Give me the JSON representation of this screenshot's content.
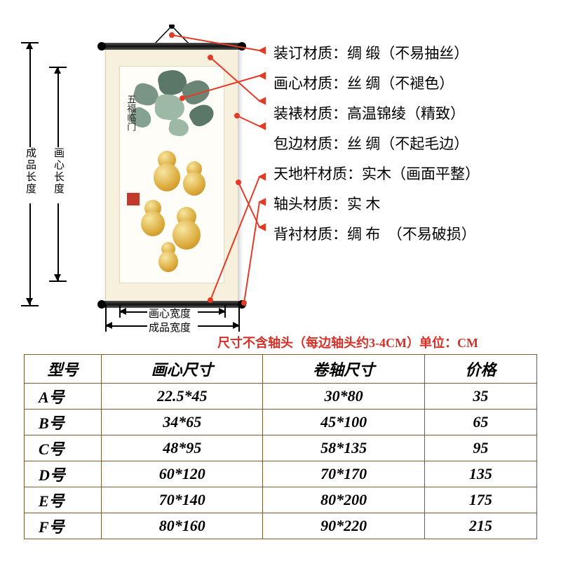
{
  "dimensions": {
    "outer_height_label": "成品长度",
    "core_height_label": "画心长度",
    "core_width_label": "画心宽度",
    "outer_width_label": "成品宽度"
  },
  "specs": [
    {
      "label": "装订材质：",
      "value": "绸 缎",
      "note": "（不易抽丝）"
    },
    {
      "label": "画心材质：",
      "value": "丝 绸",
      "note": "（不褪色）"
    },
    {
      "label": "装裱材质：",
      "value": "高温锦绫",
      "note": "（精致）"
    },
    {
      "label": "包边材质：",
      "value": "丝 绸",
      "note": "（不起毛边）"
    },
    {
      "label": "天地杆材质：",
      "value": "实木",
      "note": "（画面平整）"
    },
    {
      "label": "轴头材质：",
      "value": "实 木",
      "note": ""
    },
    {
      "label": "背衬材质：",
      "value": "绸 布",
      "note": "　（不易破损）"
    }
  ],
  "note_text": "尺寸不含轴头（每边轴头约3-4CM）单位：CM",
  "note_color": "#d63027",
  "callout_color": "#e33b26",
  "table": {
    "headers": [
      "型号",
      "画心尺寸",
      "卷轴尺寸",
      "价格"
    ],
    "rows": [
      [
        "A号",
        "22.5*45",
        "30*80",
        "35"
      ],
      [
        "B号",
        "34*65",
        "45*100",
        "65"
      ],
      [
        "C号",
        "48*95",
        "58*135",
        "95"
      ],
      [
        "D号",
        "60*120",
        "70*170",
        "135"
      ],
      [
        "E号",
        "70*140",
        "80*200",
        "175"
      ],
      [
        "F号",
        "80*160",
        "90*220",
        "215"
      ]
    ],
    "border_color": "#7a5c30"
  },
  "art": {
    "leaf_color_dark": "#5b7768",
    "leaf_color_light": "#9eb8a6",
    "gourd_color": "#d9a634",
    "calligraphy": "五福临门"
  }
}
